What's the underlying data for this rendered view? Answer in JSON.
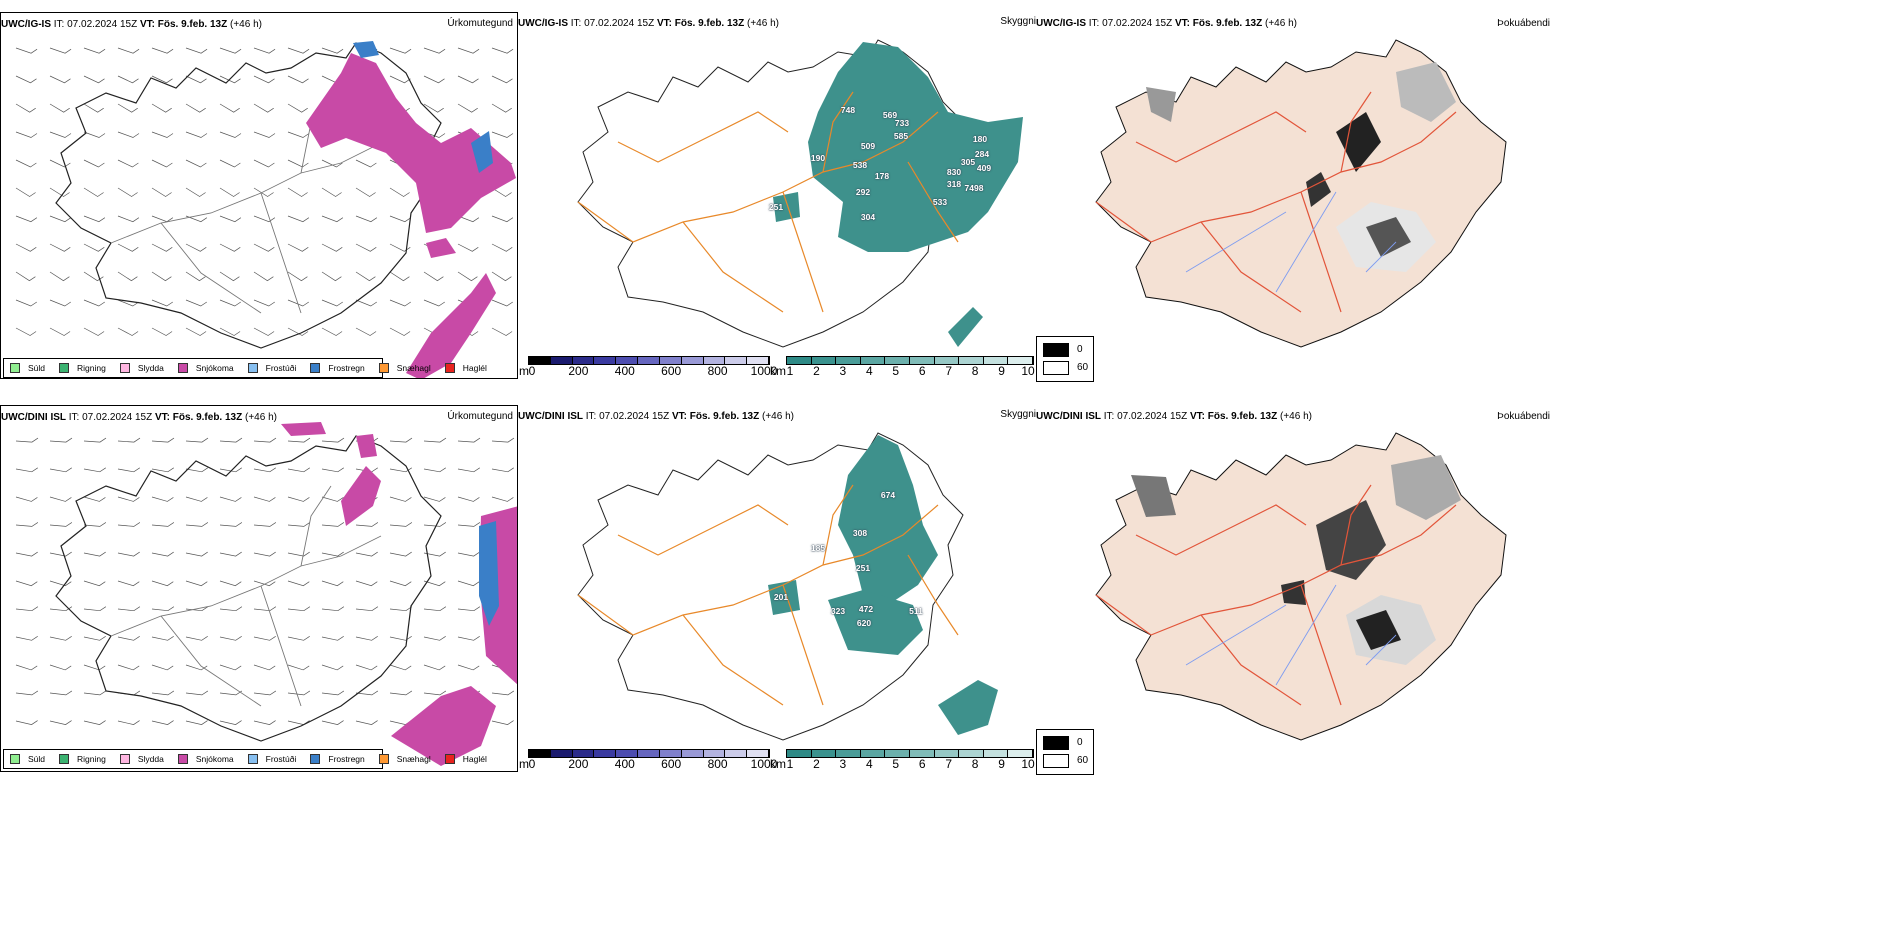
{
  "rows": [
    {
      "model": "UWC/IG-IS",
      "it": "IT: 07.02.2024 15Z",
      "vt_label": "VT:",
      "vt_value": "Fös. 9.feb. 13Z",
      "lead": "(+46 h)",
      "panels": {
        "precip_title": "Úrkomutegund",
        "visibility_title": "Skyggni",
        "fog_title": "Þokuábendi"
      },
      "visibility_labels": [
        "748",
        "569",
        "733",
        "585",
        "509",
        "190",
        "538",
        "178",
        "292",
        "180",
        "284",
        "305",
        "830",
        "318",
        "7498",
        "409",
        "533",
        "251",
        "304"
      ]
    },
    {
      "model": "UWC/DINI ISL",
      "it": "IT: 07.02.2024 15Z",
      "vt_label": "VT:",
      "vt_value": "Fös. 9.feb. 13Z",
      "lead": "(+46 h)",
      "panels": {
        "precip_title": "Úrkomutegund",
        "visibility_title": "Skyggni",
        "fog_title": "Þokuábendi"
      },
      "visibility_labels": [
        "674",
        "308",
        "185",
        "251",
        "201",
        "323",
        "472",
        "620",
        "511"
      ]
    }
  ],
  "precip_legend": [
    {
      "label": "Súld",
      "color": "#90ee90"
    },
    {
      "label": "Rigning",
      "color": "#3cb371"
    },
    {
      "label": "Slydda",
      "color": "#ffb6e1"
    },
    {
      "label": "Snjókoma",
      "color": "#c84aa6"
    },
    {
      "label": "Frostúði",
      "color": "#87bff0"
    },
    {
      "label": "Frostregn",
      "color": "#3a7fc8"
    },
    {
      "label": "Snæhagl",
      "color": "#ff9933"
    },
    {
      "label": "Haglél",
      "color": "#e8231e"
    }
  ],
  "elevation_bar": {
    "unit": "m",
    "ticks": [
      "0",
      "200",
      "400",
      "600",
      "800",
      "1000"
    ],
    "colors": [
      "#000000",
      "#1a1a6e",
      "#2b2b8a",
      "#3a3aa0",
      "#4d4db0",
      "#6666bf",
      "#8080cc",
      "#9999d6",
      "#b3b3e0",
      "#ccccea",
      "#e0e0f2"
    ]
  },
  "visibility_bar": {
    "unit": "km",
    "ticks": [
      "1",
      "2",
      "3",
      "4",
      "5",
      "6",
      "7",
      "8",
      "9",
      "10"
    ],
    "colors": [
      "#2e8a86",
      "#3a928e",
      "#4a9c98",
      "#5ba6a2",
      "#6cb0ac",
      "#80bcb8",
      "#96c8c5",
      "#acd4d2",
      "#c4e1df",
      "#dceeed"
    ]
  },
  "cloud_legend": {
    "top": "0",
    "bottom": "60"
  },
  "colors": {
    "snow": "#c84aa6",
    "freezing_rain": "#3a7fc8",
    "visibility": "#3e918c",
    "roads_vis": "#e8892a",
    "roads_fog": "#e2553a",
    "land_fog": "#f4e1d4",
    "rivers": "#7e9cf0"
  }
}
